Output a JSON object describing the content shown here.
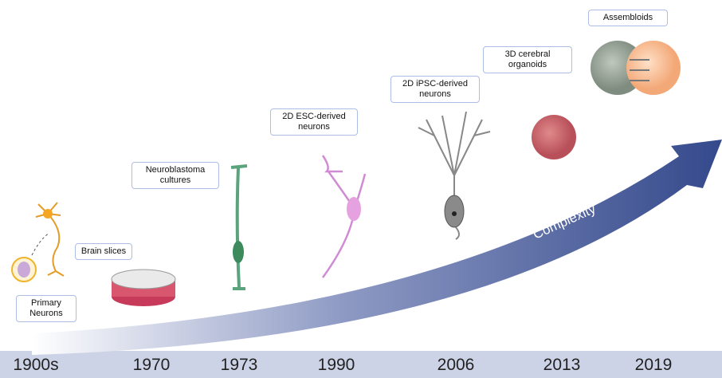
{
  "timeline": {
    "arrow_label": "Complexity",
    "events": [
      {
        "label": "Primary Neurons",
        "year": "1900s"
      },
      {
        "label": "Brain slices",
        "year": "1970"
      },
      {
        "label": "Neuroblastoma cultures",
        "year": "1973"
      },
      {
        "label": "2D ESC-derived neurons",
        "year": "1990"
      },
      {
        "label": "2D iPSC-derived neurons",
        "year": "2006"
      },
      {
        "label": "3D cerebral organoids",
        "year": "2013"
      },
      {
        "label": "Assembloids",
        "year": "2019"
      }
    ]
  }
}
